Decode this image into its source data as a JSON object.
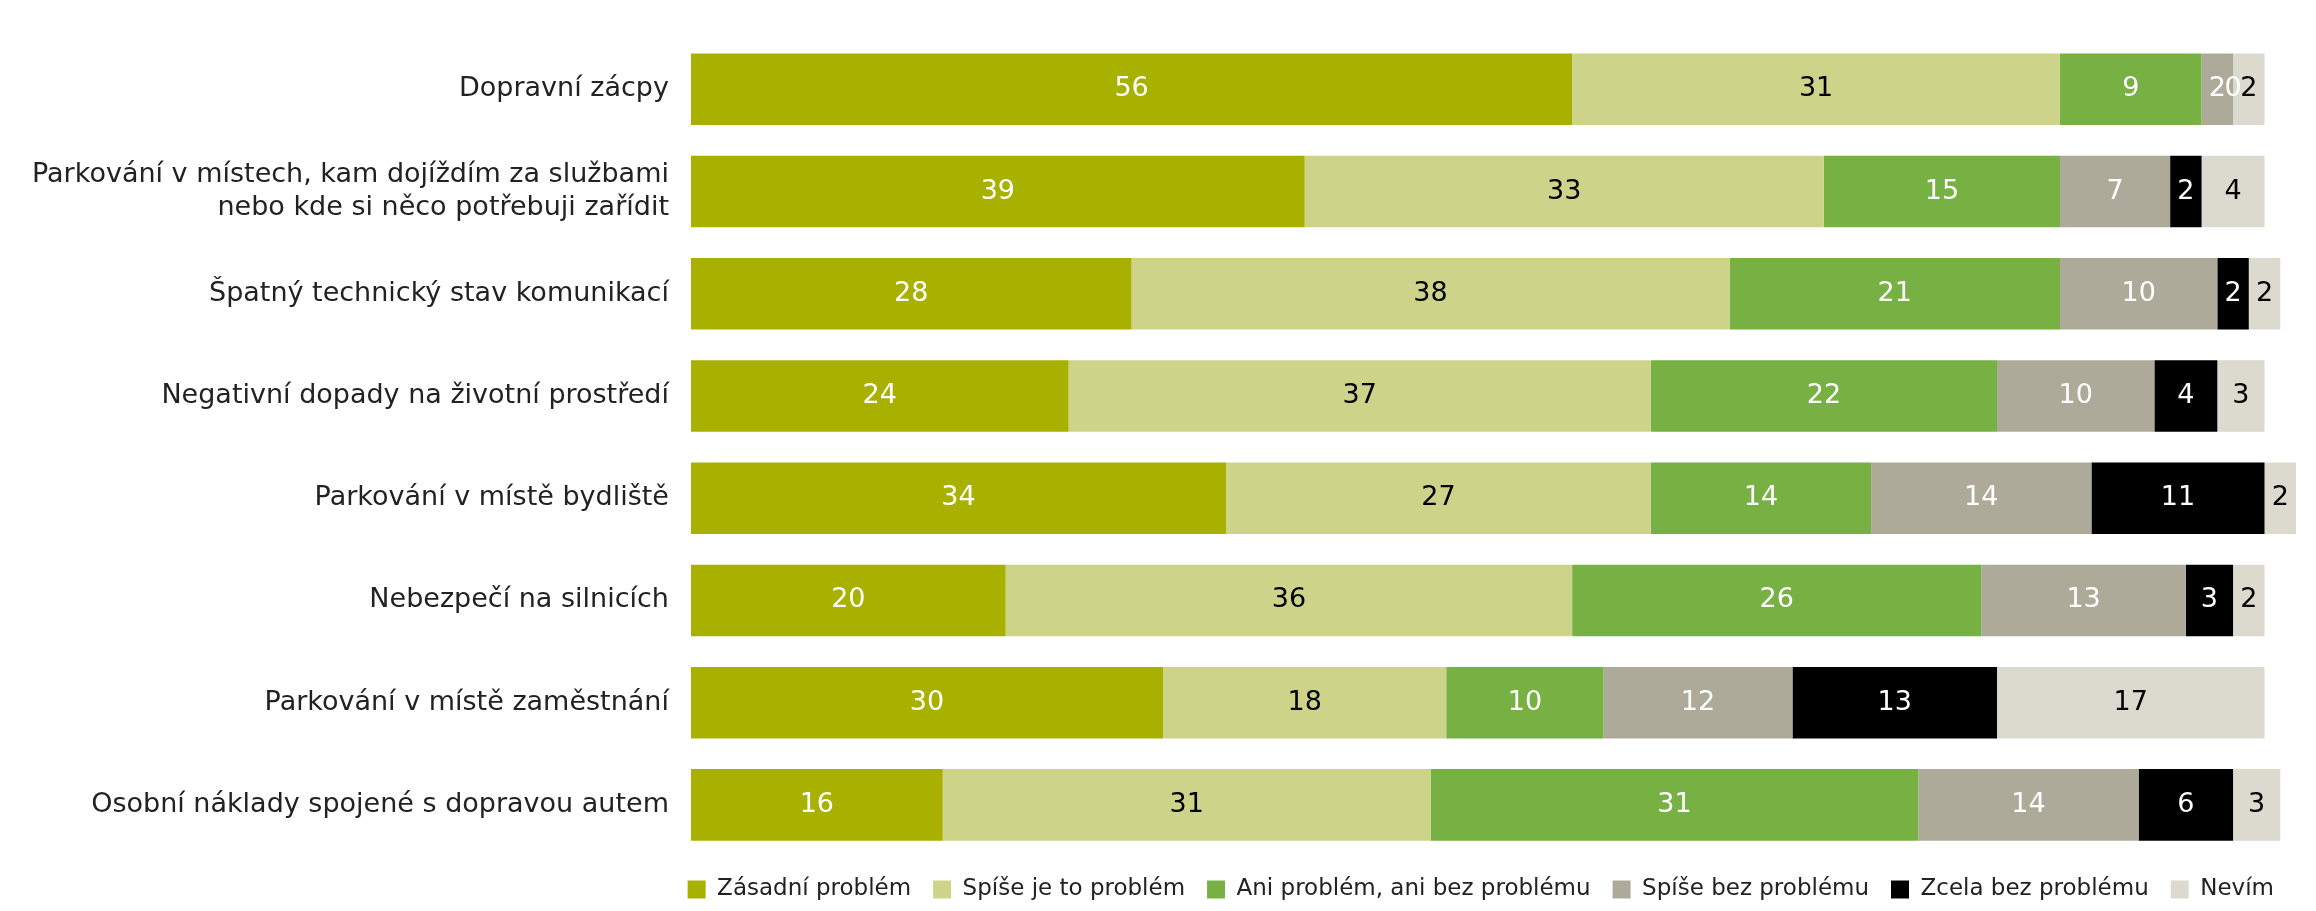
{
  "chart_data": {
    "type": "bar",
    "orientation": "horizontal",
    "stacked": true,
    "data_labels": true,
    "legend": "bottom",
    "categories": [
      "Dopravní zácpy",
      "Parkování v místech, kam dojíždím za službami nebo kde si něco potřebuji zařídit",
      "Špatný technický stav komunikací",
      "Negativní dopady na životní prostředí",
      "Parkování v místě bydliště",
      "Nebezpečí na silnicích",
      "Parkování v místě zaměstnání",
      "Osobní náklady spojené s dopravou autem"
    ],
    "series": [
      {
        "name": "Zásadní problém",
        "color": "#a8b000",
        "values": [
          56,
          39,
          28,
          24,
          34,
          20,
          30,
          16
        ]
      },
      {
        "name": "Spíše je to problém",
        "color": "#cdd48a",
        "values": [
          31,
          33,
          38,
          37,
          27,
          36,
          18,
          31
        ]
      },
      {
        "name": "Ani problém, ani bez problému",
        "color": "#77b043",
        "values": [
          9,
          15,
          21,
          22,
          14,
          26,
          10,
          31
        ]
      },
      {
        "name": "Spíše bez problému",
        "color": "#aeaa9a",
        "values": [
          2,
          7,
          10,
          10,
          14,
          13,
          12,
          14
        ]
      },
      {
        "name": "Zcela bez problému",
        "color": "#000000",
        "values": [
          0,
          2,
          2,
          4,
          11,
          3,
          13,
          6
        ]
      },
      {
        "name": "Nevím",
        "color": "#dcd9ce",
        "values": [
          2,
          4,
          2,
          3,
          2,
          2,
          17,
          3
        ]
      }
    ]
  }
}
